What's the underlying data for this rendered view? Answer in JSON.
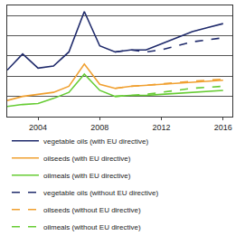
{
  "chart_data": {
    "type": "line",
    "x": [
      2002,
      2003,
      2004,
      2005,
      2006,
      2007,
      2008,
      2009,
      2010,
      2011,
      2012,
      2013,
      2014,
      2015,
      2016
    ],
    "series": [
      {
        "name": "vegetable oils (with EU directive)",
        "color": "#1f2a6b",
        "line_style": "solid",
        "values": [
          2.3,
          3.1,
          2.4,
          2.5,
          3.2,
          5.2,
          3.5,
          3.2,
          3.3,
          3.3,
          3.6,
          3.9,
          4.2,
          4.4,
          4.6
        ]
      },
      {
        "name": "oilseeds (with EU directive)",
        "color": "#f0a030",
        "line_style": "solid",
        "values": [
          0.8,
          1.0,
          1.1,
          1.2,
          1.5,
          2.6,
          1.6,
          1.4,
          1.5,
          1.55,
          1.6,
          1.65,
          1.7,
          1.75,
          1.8
        ]
      },
      {
        "name": "oilmeals (with EU directive)",
        "color": "#66cc33",
        "line_style": "solid",
        "values": [
          0.5,
          0.6,
          0.65,
          0.9,
          1.2,
          2.1,
          1.3,
          1.0,
          1.05,
          1.05,
          1.1,
          1.15,
          1.2,
          1.25,
          1.3
        ]
      },
      {
        "name": "vegetable oils (without EU directive)",
        "color": "#1f2a6b",
        "line_style": "dash",
        "values": [
          null,
          null,
          null,
          null,
          null,
          null,
          null,
          3.2,
          3.3,
          3.2,
          3.3,
          3.5,
          3.7,
          3.8,
          3.9
        ]
      },
      {
        "name": "oilseeds (without EU directive)",
        "color": "#f0a030",
        "line_style": "dash",
        "values": [
          null,
          null,
          null,
          null,
          null,
          null,
          null,
          1.4,
          1.5,
          1.55,
          1.62,
          1.7,
          1.75,
          1.8,
          1.85
        ]
      },
      {
        "name": "oilmeals (without EU directive)",
        "color": "#66cc33",
        "line_style": "dash",
        "values": [
          null,
          null,
          null,
          null,
          null,
          null,
          null,
          1.0,
          1.05,
          1.1,
          1.2,
          1.3,
          1.4,
          1.45,
          1.5
        ]
      }
    ],
    "xlim": [
      2002,
      2016.6
    ],
    "xticks": [
      2004,
      2008,
      2012,
      2016
    ],
    "ylim": [
      0,
      5.5
    ],
    "yticks": [
      0,
      1,
      2,
      3,
      4,
      5
    ],
    "grid": true,
    "tick_labels": "x",
    "legend": "bottom"
  }
}
